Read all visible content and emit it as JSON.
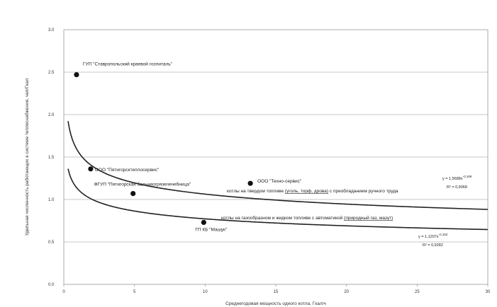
{
  "chart_data": {
    "type": "scatter",
    "title": "",
    "xlabel": "Среднегодовая мощность одного котла, Гкал/ч",
    "ylabel": "Удельная численность работающих в системе теплоснабжения, чел/Гкал",
    "xlim": [
      0,
      30
    ],
    "ylim": [
      0.0,
      3.0
    ],
    "x_ticks": [
      "0",
      "5",
      "10",
      "15",
      "20",
      "25",
      "30"
    ],
    "y_ticks": [
      "0.0",
      "0.5",
      "1.0",
      "1.5",
      "2.0",
      "2.5",
      "3.0"
    ],
    "grid": "horizontal",
    "points": [
      {
        "x": 0.9,
        "y": 2.47,
        "label": "ГУП \"Ставропольский краевой госпиталь\""
      },
      {
        "x": 1.9,
        "y": 1.36,
        "label": "ООО \"Пятигорсктеплосервис\""
      },
      {
        "x": 4.9,
        "y": 1.07,
        "label": "ФГУП \"Пятигорская бальнеогрязелечебница\""
      },
      {
        "x": 13.2,
        "y": 1.19,
        "label": "ООО \"Техно-сервис\""
      },
      {
        "x": 9.9,
        "y": 0.73,
        "label": "ГП КБ \"Машук\""
      }
    ],
    "trendlines": [
      {
        "name_parts": [
          "котлы на твердом топливе ",
          "(уголь, торф, дрова)",
          " с преобладанием ручного труда"
        ],
        "coef": 1.5688,
        "exp": -0.169,
        "equation": "y = 1,5688x",
        "exponent_label": "-0,169",
        "r2": "R² = 0,9068"
      },
      {
        "name_parts": [
          "котлы на газообразном и жидком топливе с автоматикой ",
          "(природный газ, мазут)"
        ],
        "coef": 1.1207,
        "exp": -0.162,
        "equation": "y = 1,1207x",
        "exponent_label": "-0,162",
        "r2": "R² = 0,9282"
      }
    ]
  }
}
